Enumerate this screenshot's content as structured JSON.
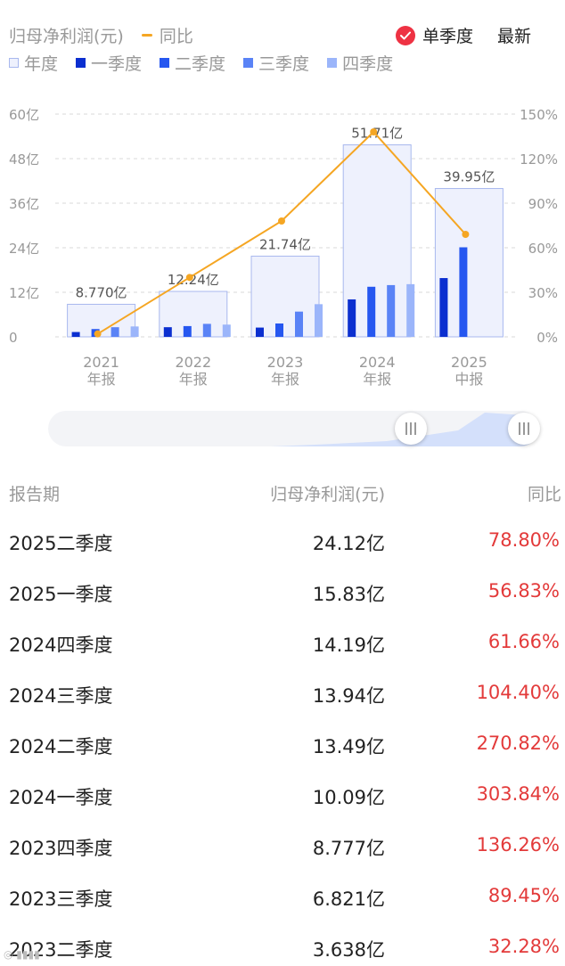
{
  "header": {
    "metric_title": "归母净利润(元)",
    "yoy_legend": "同比",
    "single_quarter_label": "单季度",
    "latest_label": "最新"
  },
  "legend": {
    "year": "年度",
    "q1": "一季度",
    "q2": "二季度",
    "q3": "三季度",
    "q4": "四季度"
  },
  "colors": {
    "year_fill": "#eef1fd",
    "year_stroke": "#a8b8ee",
    "q1": "#0b2fd0",
    "q2": "#2657f0",
    "q3": "#5a83f6",
    "q4": "#9bb5fa",
    "yoy_line": "#f5a623",
    "positive": "#e33a3a",
    "check": "#ee3243"
  },
  "chart_data": {
    "type": "bar",
    "categories": [
      "2021 年报",
      "2022 年报",
      "2023 年报",
      "2024 年报",
      "2025 中报"
    ],
    "x_tick_years": [
      "2021",
      "2022",
      "2023",
      "2024",
      "2025"
    ],
    "x_tick_types": [
      "年报",
      "年报",
      "年报",
      "年报",
      "中报"
    ],
    "y_left_ticks": [
      "60亿",
      "48亿",
      "36亿",
      "24亿",
      "12亿",
      "0"
    ],
    "y_right_ticks": [
      "150%",
      "120%",
      "90%",
      "60%",
      "30%",
      "0%"
    ],
    "ylim_left": [
      0,
      60
    ],
    "ylim_right": [
      0,
      150
    ],
    "annual": [
      8.77,
      12.24,
      21.74,
      51.71,
      39.95
    ],
    "annual_labels": [
      "8.770亿",
      "12.24亿",
      "21.74亿",
      "51.71亿",
      "39.95亿"
    ],
    "quarters": [
      [
        1.3,
        2.1,
        2.6,
        2.8
      ],
      [
        2.6,
        2.9,
        3.5,
        3.3
      ],
      [
        2.5,
        3.6,
        6.8,
        8.8
      ],
      [
        10.09,
        13.49,
        13.94,
        14.19
      ],
      [
        15.83,
        24.12
      ]
    ],
    "yoy": [
      2,
      40,
      78,
      138,
      69
    ],
    "grid": true
  },
  "table": {
    "headers": {
      "period": "报告期",
      "profit": "归母净利润(元)",
      "yoy": "同比"
    },
    "rows": [
      {
        "period": "2025二季度",
        "profit": "24.12亿",
        "yoy": "78.80%"
      },
      {
        "period": "2025一季度",
        "profit": "15.83亿",
        "yoy": "56.83%"
      },
      {
        "period": "2024四季度",
        "profit": "14.19亿",
        "yoy": "61.66%"
      },
      {
        "period": "2024三季度",
        "profit": "13.94亿",
        "yoy": "104.40%"
      },
      {
        "period": "2024二季度",
        "profit": "13.49亿",
        "yoy": "270.82%"
      },
      {
        "period": "2024一季度",
        "profit": "10.09亿",
        "yoy": "303.84%"
      },
      {
        "period": "2023四季度",
        "profit": "8.777亿",
        "yoy": "136.26%"
      },
      {
        "period": "2023三季度",
        "profit": "6.821亿",
        "yoy": "89.45%"
      },
      {
        "period": "2023二季度",
        "profit": "3.638亿",
        "yoy": "32.28%"
      }
    ]
  }
}
